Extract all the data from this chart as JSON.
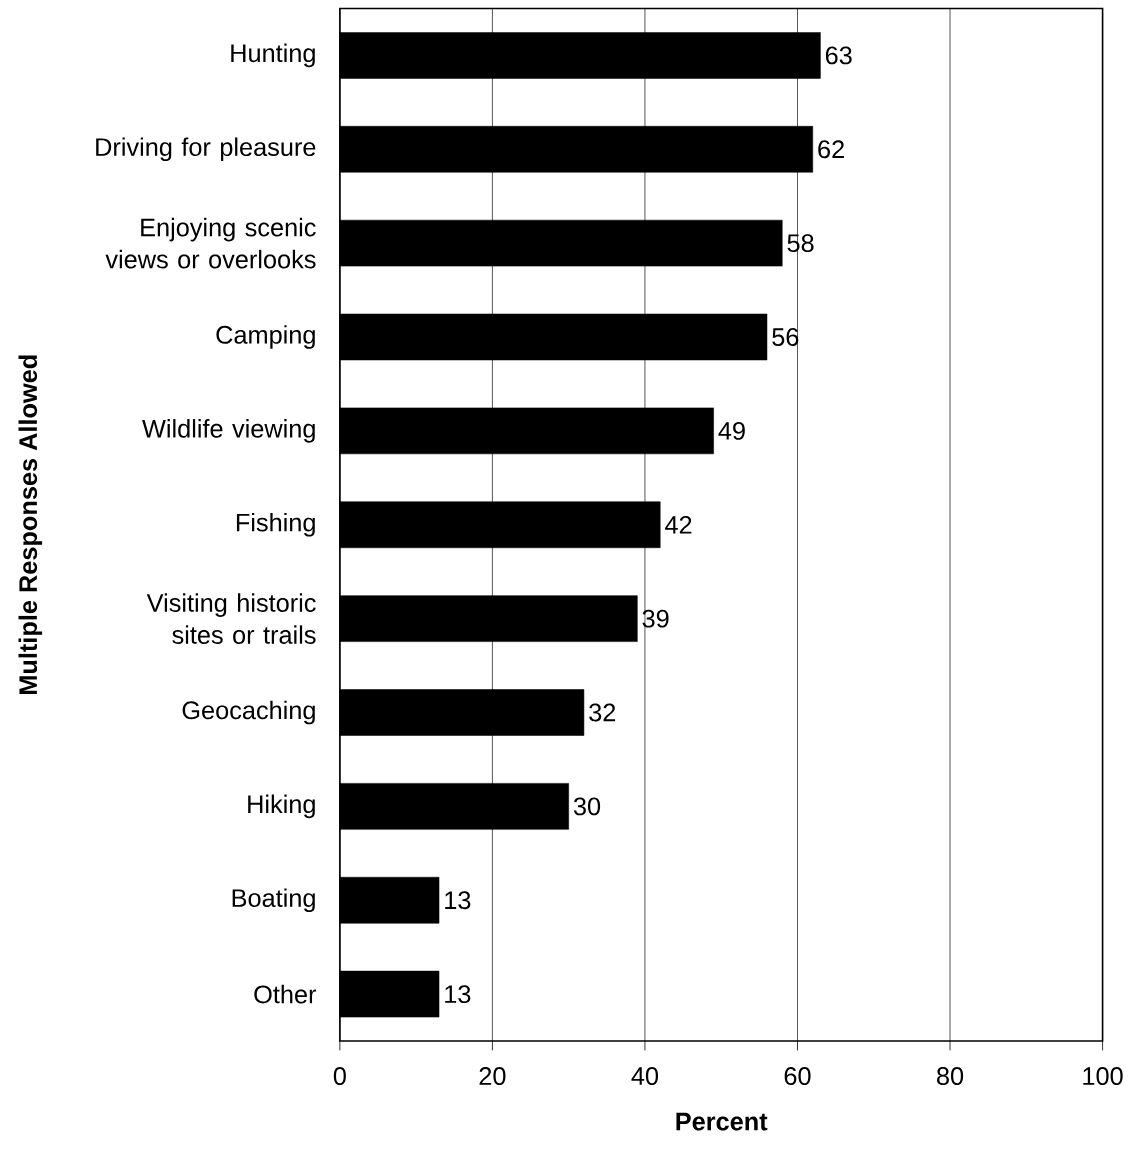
{
  "chart_data": {
    "type": "bar",
    "orientation": "horizontal",
    "xlabel": "Percent",
    "ylabel": "Multiple Responses Allowed",
    "categories": [
      "Hunting",
      "Driving for pleasure",
      "Enjoying scenic views or overlooks",
      "Camping",
      "Wildlife viewing",
      "Fishing",
      "Visiting historic sites or trails",
      "Geocaching",
      "Hiking",
      "Boating",
      "Other"
    ],
    "values": [
      63,
      62,
      58,
      56,
      49,
      42,
      39,
      32,
      30,
      13,
      13
    ],
    "color": "#000000",
    "data_labels": true,
    "grid": "x",
    "xlim": [
      0,
      100
    ],
    "xticks": [
      0,
      20,
      40,
      60,
      80,
      100
    ]
  }
}
